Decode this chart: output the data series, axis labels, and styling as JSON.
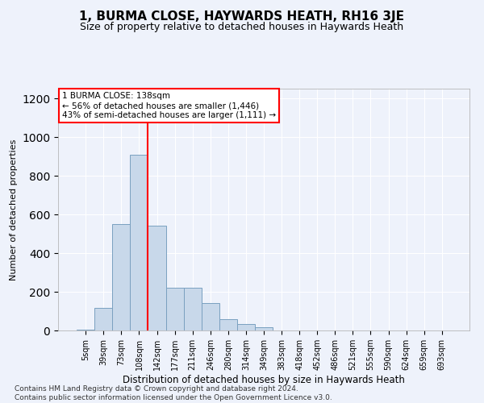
{
  "title": "1, BURMA CLOSE, HAYWARDS HEATH, RH16 3JE",
  "subtitle": "Size of property relative to detached houses in Haywards Heath",
  "xlabel": "Distribution of detached houses by size in Haywards Heath",
  "ylabel": "Number of detached properties",
  "bar_color": "#c8d8ea",
  "bar_edge_color": "#7aa0c0",
  "categories": [
    "5sqm",
    "39sqm",
    "73sqm",
    "108sqm",
    "142sqm",
    "177sqm",
    "211sqm",
    "246sqm",
    "280sqm",
    "314sqm",
    "349sqm",
    "383sqm",
    "418sqm",
    "452sqm",
    "486sqm",
    "521sqm",
    "555sqm",
    "590sqm",
    "624sqm",
    "659sqm",
    "693sqm"
  ],
  "values": [
    5,
    115,
    548,
    910,
    540,
    220,
    220,
    140,
    60,
    32,
    18,
    0,
    0,
    0,
    0,
    0,
    0,
    0,
    0,
    0,
    0
  ],
  "ylim": [
    0,
    1250
  ],
  "yticks": [
    0,
    200,
    400,
    600,
    800,
    1000,
    1200
  ],
  "property_line_x": 3.5,
  "annotation_text": "1 BURMA CLOSE: 138sqm\n← 56% of detached houses are smaller (1,446)\n43% of semi-detached houses are larger (1,111) →",
  "annotation_box_color": "white",
  "annotation_box_edge_color": "red",
  "property_line_color": "red",
  "footnote": "Contains HM Land Registry data © Crown copyright and database right 2024.\nContains public sector information licensed under the Open Government Licence v3.0.",
  "background_color": "#eef2fb",
  "grid_color": "#ffffff",
  "title_fontsize": 11,
  "subtitle_fontsize": 9,
  "ylabel_fontsize": 8,
  "xlabel_fontsize": 8.5,
  "tick_fontsize": 7,
  "annotation_fontsize": 7.5,
  "footnote_fontsize": 6.5
}
